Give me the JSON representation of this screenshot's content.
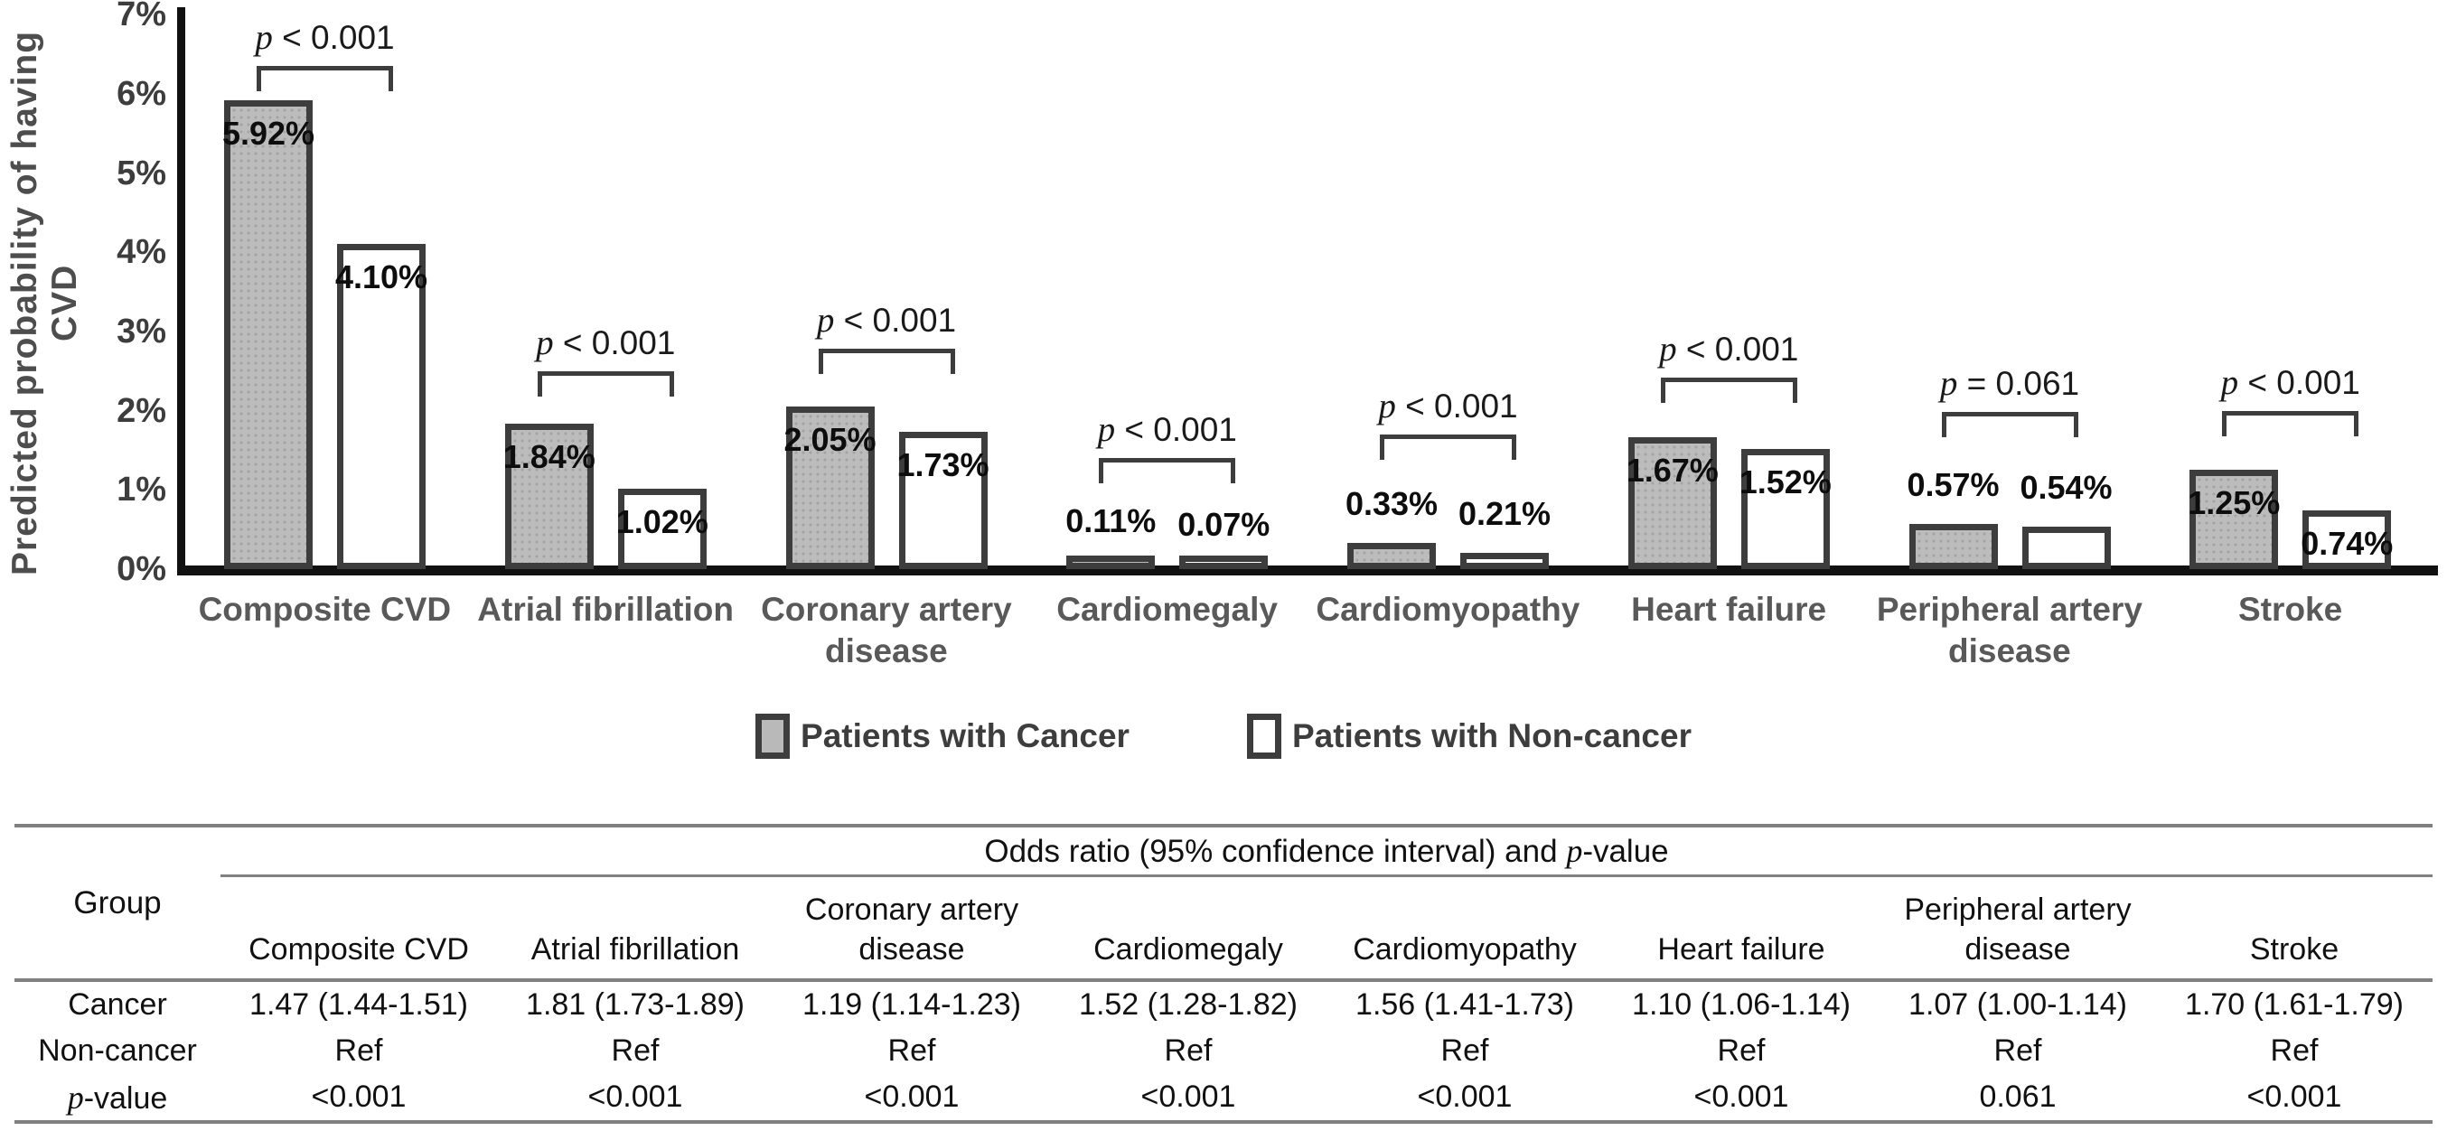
{
  "chart_data": {
    "type": "bar",
    "title": "",
    "ylabel": "Predicted probability of having CVD",
    "xlabel": "",
    "ylim": [
      0,
      7
    ],
    "yticks": [
      "0%",
      "1%",
      "2%",
      "3%",
      "4%",
      "5%",
      "6%",
      "7%"
    ],
    "grid": false,
    "legend_position": "bottom",
    "categories": [
      "Composite CVD",
      "Atrial fibrillation",
      "Coronary artery disease",
      "Cardiomegaly",
      "Cardiomyopathy",
      "Heart failure",
      "Peripheral artery disease",
      "Stroke"
    ],
    "series": [
      {
        "name": "Patients with Cancer",
        "fill": "gray",
        "values": [
          5.92,
          1.84,
          2.05,
          0.11,
          0.33,
          1.67,
          0.57,
          1.25
        ],
        "labels": [
          "5.92%",
          "1.84%",
          "2.05%",
          "0.11%",
          "0.33%",
          "1.67%",
          "0.57%",
          "1.25%"
        ]
      },
      {
        "name": "Patients with Non-cancer",
        "fill": "white",
        "values": [
          4.1,
          1.02,
          1.73,
          0.07,
          0.21,
          1.52,
          0.54,
          0.74
        ],
        "labels": [
          "4.10%",
          "1.02%",
          "1.73%",
          "0.07%",
          "0.21%",
          "1.52%",
          "0.54%",
          "0.74%"
        ]
      }
    ],
    "p_values": [
      "p < 0.001",
      "p < 0.001",
      "p < 0.001",
      "p < 0.001",
      "p < 0.001",
      "p < 0.001",
      "p = 0.061",
      "p < 0.001"
    ],
    "bracket_heights_pct": [
      6.35,
      2.5,
      2.78,
      1.4,
      1.7,
      2.42,
      1.98,
      2.0
    ],
    "colors": {
      "cancer_fill": "#b9b9b9",
      "noncancer_fill": "#ffffff",
      "bar_border": "#3d3d3d",
      "axis": "#111111",
      "category_label": "#595959",
      "table_rule": "#808080"
    }
  },
  "table": {
    "group_header": "Group",
    "span_header": "Odds ratio (95% confidence interval) and p-value",
    "columns": [
      "Composite CVD",
      "Atrial fibrillation",
      "Coronary artery disease",
      "Cardiomegaly",
      "Cardiomyopathy",
      "Heart failure",
      "Peripheral artery disease",
      "Stroke"
    ],
    "rows": [
      {
        "label": "Cancer",
        "values": [
          "1.47 (1.44-1.51)",
          "1.81 (1.73-1.89)",
          "1.19 (1.14-1.23)",
          "1.52 (1.28-1.82)",
          "1.56 (1.41-1.73)",
          "1.10 (1.06-1.14)",
          "1.07 (1.00-1.14)",
          "1.70 (1.61-1.79)"
        ]
      },
      {
        "label": "Non-cancer",
        "values": [
          "Ref",
          "Ref",
          "Ref",
          "Ref",
          "Ref",
          "Ref",
          "Ref",
          "Ref"
        ]
      },
      {
        "label": "p-value",
        "values": [
          "<0.001",
          "<0.001",
          "<0.001",
          "<0.001",
          "<0.001",
          "<0.001",
          "0.061",
          "<0.001"
        ]
      }
    ]
  }
}
